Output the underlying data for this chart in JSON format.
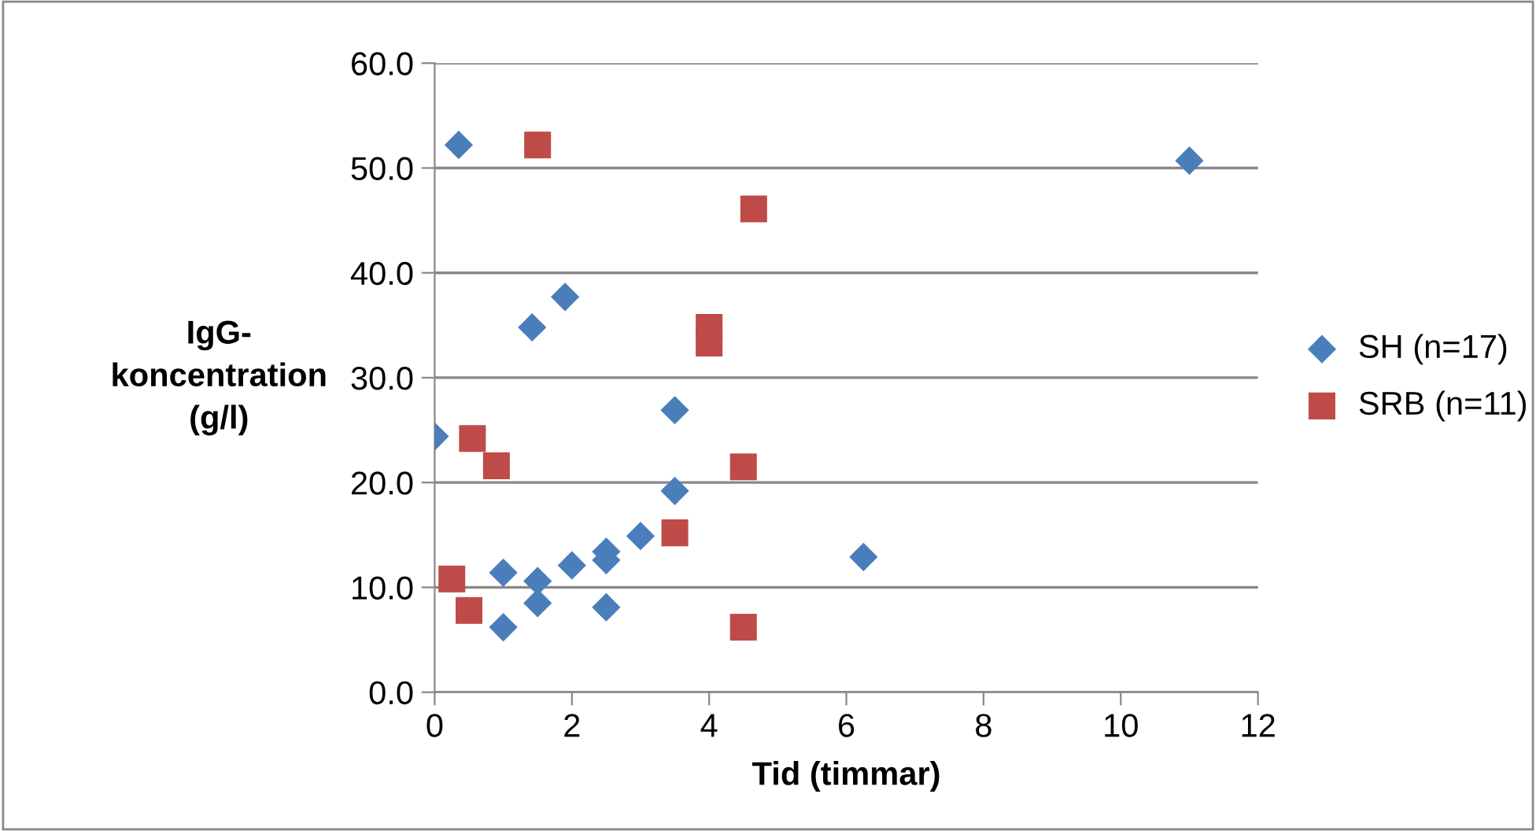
{
  "chart_data": {
    "type": "scatter",
    "xlabel": "Tid (timmar)",
    "ylabel": "IgG-\nkoncentration\n(g/l)",
    "xlim": [
      0,
      12
    ],
    "xticks": [
      0,
      2,
      4,
      6,
      8,
      10,
      12
    ],
    "ylim": [
      0,
      60
    ],
    "yticks": [
      {
        "value": 0,
        "label": "0.0"
      },
      {
        "value": 10,
        "label": "10.0"
      },
      {
        "value": 20,
        "label": "20.0"
      },
      {
        "value": 30,
        "label": "30.0"
      },
      {
        "value": 40,
        "label": "40.0"
      },
      {
        "value": 50,
        "label": "50.0"
      },
      {
        "value": 60,
        "label": "60.0"
      }
    ],
    "grid": "y",
    "legend": "right",
    "series": [
      {
        "name": "SH (n=17)",
        "color": "#4a7ebb",
        "marker": "diamond",
        "x": [
          0,
          0.35,
          1.42,
          1.9,
          3.5,
          3.5,
          3.0,
          2.5,
          2.5,
          2.0,
          1.0,
          1.5,
          1.5,
          1.0,
          2.5,
          6.25,
          11.0
        ],
        "values": [
          24.4,
          52.2,
          34.8,
          37.7,
          26.9,
          19.2,
          14.9,
          13.4,
          12.6,
          12.1,
          11.4,
          10.6,
          8.5,
          6.2,
          8.1,
          12.9,
          50.7
        ]
      },
      {
        "name": "SRB (n=11)",
        "color": "#be4b48",
        "marker": "square",
        "x": [
          1.5,
          4.65,
          4.0,
          4.0,
          0.55,
          0.9,
          4.5,
          3.5,
          0.25,
          0.5,
          4.5
        ],
        "values": [
          52.2,
          46.1,
          34.8,
          33.3,
          24.2,
          21.6,
          21.5,
          15.2,
          10.8,
          7.8,
          6.2
        ]
      }
    ]
  }
}
